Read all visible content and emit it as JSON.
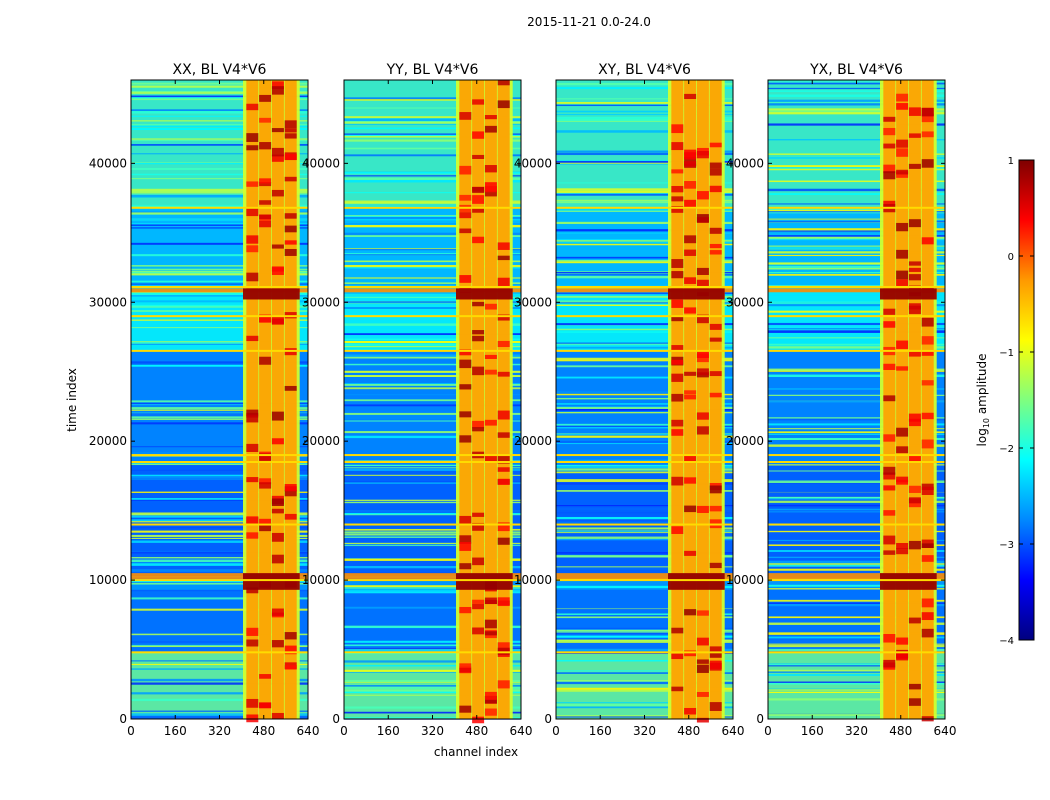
{
  "figure": {
    "suptitle": "2015-11-21 0.0-24.0",
    "xlabel": "channel index",
    "ylabel": "time index"
  },
  "colorbar": {
    "label": "log10 amplitude",
    "label_base": "log",
    "label_sub": "10",
    "label_rest": " amplitude",
    "ticks": [
      1,
      0,
      -1,
      -2,
      -3,
      -4
    ],
    "tick_labels": [
      "1",
      "0",
      "−1",
      "−2",
      "−3",
      "−4"
    ],
    "colors": [
      "#7f0000",
      "#ff0000",
      "#ff9900",
      "#ffff00",
      "#7fff7f",
      "#00ffff",
      "#0088ff",
      "#0000ff",
      "#00007f"
    ]
  },
  "chart_data": [
    {
      "type": "heatmap",
      "title": "XX, BL V4*V6",
      "xlim": [
        0,
        640
      ],
      "ylim": [
        0,
        46000
      ],
      "xticks": [
        0,
        160,
        320,
        480,
        640
      ],
      "yticks": [
        0,
        10000,
        20000,
        30000,
        40000
      ],
      "clim": [
        -4,
        1
      ],
      "features": {
        "rfi_band_channels": [
          [
            405,
            610
          ]
        ],
        "bright_time_bands": [
          [
            9300,
            10500
          ],
          [
            30200,
            31000
          ]
        ],
        "flagged_time_rows": [
          4800,
          10000,
          14000,
          18500,
          19000,
          26500,
          29000,
          31100,
          36800
        ]
      }
    },
    {
      "type": "heatmap",
      "title": "YY, BL V4*V6",
      "xlim": [
        0,
        640
      ],
      "ylim": [
        0,
        46000
      ],
      "xticks": [
        0,
        160,
        320,
        480,
        640
      ],
      "yticks": [
        0,
        10000,
        20000,
        30000,
        40000
      ],
      "clim": [
        -4,
        1
      ],
      "features": {
        "rfi_band_channels": [
          [
            405,
            610
          ]
        ],
        "bright_time_bands": [
          [
            9300,
            10500
          ],
          [
            30200,
            31000
          ]
        ],
        "flagged_time_rows": [
          4800,
          10000,
          14000,
          18500,
          19000,
          26500,
          29000,
          31100,
          36800
        ]
      }
    },
    {
      "type": "heatmap",
      "title": "XY, BL V4*V6",
      "xlim": [
        0,
        640
      ],
      "ylim": [
        0,
        46000
      ],
      "xticks": [
        0,
        160,
        320,
        480,
        640
      ],
      "yticks": [
        0,
        10000,
        20000,
        30000,
        40000
      ],
      "clim": [
        -4,
        1
      ],
      "features": {
        "rfi_band_channels": [
          [
            405,
            610
          ]
        ],
        "bright_time_bands": [
          [
            9300,
            10500
          ],
          [
            30200,
            31000
          ]
        ],
        "flagged_time_rows": [
          4800,
          10000,
          14000,
          18500,
          19000,
          26500,
          29000,
          31100,
          36800
        ]
      }
    },
    {
      "type": "heatmap",
      "title": "YX, BL V4*V6",
      "xlim": [
        0,
        640
      ],
      "ylim": [
        0,
        46000
      ],
      "xticks": [
        0,
        160,
        320,
        480,
        640
      ],
      "yticks": [
        0,
        10000,
        20000,
        30000,
        40000
      ],
      "clim": [
        -4,
        1
      ],
      "features": {
        "rfi_band_channels": [
          [
            405,
            610
          ]
        ],
        "bright_time_bands": [
          [
            9300,
            10500
          ],
          [
            30200,
            31000
          ]
        ],
        "flagged_time_rows": [
          4800,
          10000,
          14000,
          18500,
          19000,
          26500,
          29000,
          31100,
          36800
        ]
      }
    }
  ]
}
